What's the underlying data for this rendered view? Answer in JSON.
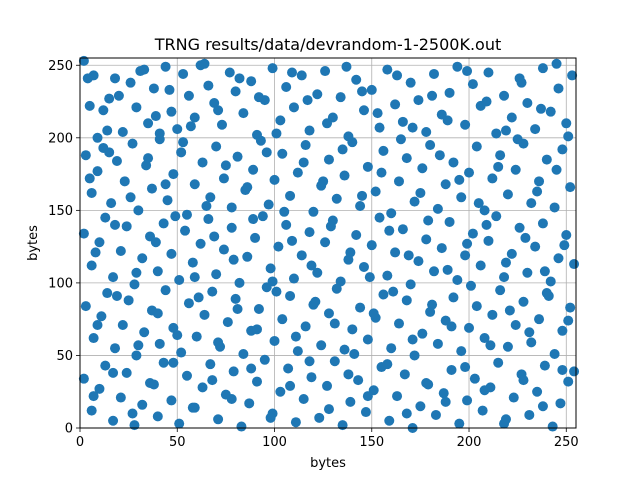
{
  "chart_data": {
    "type": "scatter",
    "title": "TRNG results/data/devrandom-1-2500K.out",
    "xlabel": "bytes",
    "ylabel": "bytes",
    "xlim": [
      0,
      255
    ],
    "ylim": [
      0,
      255
    ],
    "grid": true,
    "x_ticks": [
      0,
      50,
      100,
      150,
      200,
      250
    ],
    "y_ticks": [
      0,
      50,
      100,
      150,
      200,
      250
    ],
    "marker_color": "#1f77b4",
    "points": [
      [
        2,
        253
      ],
      [
        5,
        222
      ],
      [
        7,
        243
      ],
      [
        9,
        200
      ],
      [
        12,
        219
      ],
      [
        15,
        227
      ],
      [
        18,
        241
      ],
      [
        22,
        204
      ],
      [
        26,
        238
      ],
      [
        29,
        221
      ],
      [
        33,
        247
      ],
      [
        35,
        210
      ],
      [
        38,
        234
      ],
      [
        41,
        203
      ],
      [
        44,
        249
      ],
      [
        47,
        218
      ],
      [
        50,
        206
      ],
      [
        53,
        244
      ],
      [
        56,
        229
      ],
      [
        59,
        214
      ],
      [
        62,
        250
      ],
      [
        66,
        236
      ],
      [
        69,
        224
      ],
      [
        73,
        209
      ],
      [
        77,
        245
      ],
      [
        80,
        232
      ],
      [
        84,
        217
      ],
      [
        88,
        239
      ],
      [
        91,
        202
      ],
      [
        95,
        226
      ],
      [
        99,
        248
      ],
      [
        103,
        212
      ],
      [
        106,
        235
      ],
      [
        110,
        221
      ],
      [
        114,
        243
      ],
      [
        118,
        205
      ],
      [
        122,
        230
      ],
      [
        126,
        246
      ],
      [
        130,
        214
      ],
      [
        134,
        228
      ],
      [
        138,
        201
      ],
      [
        142,
        240
      ],
      [
        146,
        219
      ],
      [
        150,
        233
      ],
      [
        154,
        207
      ],
      [
        158,
        247
      ],
      [
        162,
        223
      ],
      [
        166,
        211
      ],
      [
        170,
        238
      ],
      [
        174,
        226
      ],
      [
        178,
        204
      ],
      [
        182,
        244
      ],
      [
        186,
        216
      ],
      [
        190,
        231
      ],
      [
        194,
        249
      ],
      [
        198,
        209
      ],
      [
        202,
        237
      ],
      [
        206,
        222
      ],
      [
        210,
        245
      ],
      [
        214,
        203
      ],
      [
        218,
        229
      ],
      [
        222,
        214
      ],
      [
        226,
        241
      ],
      [
        230,
        224
      ],
      [
        234,
        206
      ],
      [
        238,
        248
      ],
      [
        242,
        218
      ],
      [
        246,
        234
      ],
      [
        250,
        210
      ],
      [
        253,
        243
      ],
      [
        3,
        188
      ],
      [
        6,
        162
      ],
      [
        9,
        177
      ],
      [
        12,
        193
      ],
      [
        16,
        155
      ],
      [
        19,
        184
      ],
      [
        23,
        170
      ],
      [
        27,
        196
      ],
      [
        30,
        150
      ],
      [
        34,
        181
      ],
      [
        37,
        165
      ],
      [
        41,
        199
      ],
      [
        45,
        157
      ],
      [
        48,
        175
      ],
      [
        52,
        190
      ],
      [
        55,
        147
      ],
      [
        59,
        168
      ],
      [
        63,
        183
      ],
      [
        67,
        159
      ],
      [
        70,
        194
      ],
      [
        74,
        172
      ],
      [
        78,
        152
      ],
      [
        81,
        187
      ],
      [
        85,
        164
      ],
      [
        89,
        178
      ],
      [
        93,
        198
      ],
      [
        97,
        154
      ],
      [
        100,
        171
      ],
      [
        104,
        189
      ],
      [
        108,
        160
      ],
      [
        112,
        176
      ],
      [
        116,
        195
      ],
      [
        120,
        149
      ],
      [
        124,
        167
      ],
      [
        128,
        185
      ],
      [
        132,
        158
      ],
      [
        136,
        174
      ],
      [
        140,
        197
      ],
      [
        144,
        153
      ],
      [
        148,
        180
      ],
      [
        152,
        163
      ],
      [
        156,
        191
      ],
      [
        160,
        148
      ],
      [
        164,
        170
      ],
      [
        168,
        186
      ],
      [
        172,
        156
      ],
      [
        176,
        179
      ],
      [
        180,
        195
      ],
      [
        184,
        151
      ],
      [
        188,
        168
      ],
      [
        192,
        183
      ],
      [
        196,
        159
      ],
      [
        200,
        176
      ],
      [
        204,
        194
      ],
      [
        208,
        150
      ],
      [
        212,
        172
      ],
      [
        216,
        188
      ],
      [
        220,
        161
      ],
      [
        224,
        178
      ],
      [
        228,
        196
      ],
      [
        232,
        155
      ],
      [
        236,
        170
      ],
      [
        240,
        185
      ],
      [
        244,
        152
      ],
      [
        248,
        192
      ],
      [
        252,
        166
      ],
      [
        2,
        134
      ],
      [
        6,
        112
      ],
      [
        10,
        128
      ],
      [
        13,
        145
      ],
      [
        17,
        104
      ],
      [
        21,
        122
      ],
      [
        24,
        139
      ],
      [
        28,
        99
      ],
      [
        32,
        117
      ],
      [
        36,
        132
      ],
      [
        40,
        108
      ],
      [
        43,
        141
      ],
      [
        47,
        120
      ],
      [
        51,
        102
      ],
      [
        54,
        136
      ],
      [
        58,
        114
      ],
      [
        62,
        127
      ],
      [
        66,
        144
      ],
      [
        70,
        106
      ],
      [
        74,
        123
      ],
      [
        78,
        138
      ],
      [
        82,
        100
      ],
      [
        86,
        118
      ],
      [
        90,
        131
      ],
      [
        94,
        146
      ],
      [
        98,
        110
      ],
      [
        102,
        125
      ],
      [
        106,
        140
      ],
      [
        110,
        103
      ],
      [
        114,
        119
      ],
      [
        118,
        135
      ],
      [
        122,
        107
      ],
      [
        126,
        128
      ],
      [
        130,
        143
      ],
      [
        134,
        101
      ],
      [
        138,
        116
      ],
      [
        142,
        133
      ],
      [
        146,
        111
      ],
      [
        150,
        126
      ],
      [
        154,
        145
      ],
      [
        158,
        105
      ],
      [
        162,
        121
      ],
      [
        166,
        137
      ],
      [
        170,
        99
      ],
      [
        174,
        115
      ],
      [
        178,
        130
      ],
      [
        182,
        108
      ],
      [
        186,
        124
      ],
      [
        190,
        142
      ],
      [
        194,
        102
      ],
      [
        198,
        119
      ],
      [
        202,
        134
      ],
      [
        206,
        112
      ],
      [
        210,
        129
      ],
      [
        214,
        146
      ],
      [
        218,
        104
      ],
      [
        222,
        120
      ],
      [
        226,
        138
      ],
      [
        230,
        107
      ],
      [
        234,
        125
      ],
      [
        238,
        141
      ],
      [
        242,
        101
      ],
      [
        246,
        117
      ],
      [
        250,
        133
      ],
      [
        254,
        113
      ],
      [
        3,
        84
      ],
      [
        7,
        62
      ],
      [
        11,
        77
      ],
      [
        14,
        93
      ],
      [
        18,
        55
      ],
      [
        22,
        71
      ],
      [
        25,
        88
      ],
      [
        29,
        50
      ],
      [
        33,
        66
      ],
      [
        37,
        81
      ],
      [
        41,
        58
      ],
      [
        44,
        95
      ],
      [
        48,
        69
      ],
      [
        52,
        52
      ],
      [
        56,
        86
      ],
      [
        60,
        63
      ],
      [
        64,
        78
      ],
      [
        68,
        94
      ],
      [
        72,
        56
      ],
      [
        76,
        73
      ],
      [
        80,
        89
      ],
      [
        84,
        51
      ],
      [
        88,
        67
      ],
      [
        92,
        82
      ],
      [
        96,
        97
      ],
      [
        100,
        60
      ],
      [
        104,
        75
      ],
      [
        108,
        91
      ],
      [
        112,
        53
      ],
      [
        116,
        70
      ],
      [
        120,
        85
      ],
      [
        124,
        57
      ],
      [
        128,
        79
      ],
      [
        132,
        96
      ],
      [
        136,
        54
      ],
      [
        140,
        68
      ],
      [
        144,
        83
      ],
      [
        148,
        61
      ],
      [
        152,
        76
      ],
      [
        156,
        92
      ],
      [
        160,
        55
      ],
      [
        164,
        72
      ],
      [
        168,
        88
      ],
      [
        172,
        50
      ],
      [
        176,
        65
      ],
      [
        180,
        80
      ],
      [
        184,
        58
      ],
      [
        188,
        74
      ],
      [
        192,
        90
      ],
      [
        196,
        53
      ],
      [
        200,
        69
      ],
      [
        204,
        84
      ],
      [
        208,
        62
      ],
      [
        212,
        78
      ],
      [
        216,
        95
      ],
      [
        220,
        56
      ],
      [
        224,
        71
      ],
      [
        228,
        87
      ],
      [
        232,
        59
      ],
      [
        236,
        75
      ],
      [
        240,
        93
      ],
      [
        244,
        51
      ],
      [
        248,
        67
      ],
      [
        252,
        83
      ],
      [
        2,
        34
      ],
      [
        6,
        12
      ],
      [
        10,
        27
      ],
      [
        13,
        43
      ],
      [
        17,
        5
      ],
      [
        21,
        21
      ],
      [
        24,
        38
      ],
      [
        28,
        2
      ],
      [
        32,
        16
      ],
      [
        36,
        31
      ],
      [
        40,
        8
      ],
      [
        43,
        45
      ],
      [
        47,
        19
      ],
      [
        51,
        3
      ],
      [
        55,
        36
      ],
      [
        59,
        14
      ],
      [
        63,
        28
      ],
      [
        67,
        44
      ],
      [
        71,
        6
      ],
      [
        75,
        23
      ],
      [
        79,
        39
      ],
      [
        83,
        1
      ],
      [
        87,
        17
      ],
      [
        91,
        32
      ],
      [
        95,
        47
      ],
      [
        99,
        10
      ],
      [
        103,
        25
      ],
      [
        107,
        41
      ],
      [
        111,
        4
      ],
      [
        115,
        20
      ],
      [
        119,
        35
      ],
      [
        123,
        7
      ],
      [
        127,
        29
      ],
      [
        131,
        46
      ],
      [
        135,
        2
      ],
      [
        139,
        18
      ],
      [
        143,
        33
      ],
      [
        147,
        11
      ],
      [
        151,
        26
      ],
      [
        155,
        42
      ],
      [
        159,
        5
      ],
      [
        163,
        22
      ],
      [
        167,
        37
      ],
      [
        171,
        0
      ],
      [
        175,
        15
      ],
      [
        179,
        30
      ],
      [
        183,
        9
      ],
      [
        187,
        24
      ],
      [
        191,
        40
      ],
      [
        195,
        3
      ],
      [
        199,
        19
      ],
      [
        203,
        34
      ],
      [
        207,
        12
      ],
      [
        211,
        28
      ],
      [
        215,
        45
      ],
      [
        219,
        6
      ],
      [
        223,
        21
      ],
      [
        227,
        37
      ],
      [
        231,
        9
      ],
      [
        235,
        25
      ],
      [
        239,
        43
      ],
      [
        243,
        1
      ],
      [
        247,
        17
      ],
      [
        251,
        32
      ],
      [
        254,
        39
      ],
      [
        4,
        241
      ],
      [
        14,
        205
      ],
      [
        20,
        229
      ],
      [
        31,
        246
      ],
      [
        39,
        215
      ],
      [
        46,
        233
      ],
      [
        57,
        208
      ],
      [
        64,
        251
      ],
      [
        71,
        219
      ],
      [
        82,
        241
      ],
      [
        92,
        228
      ],
      [
        101,
        203
      ],
      [
        109,
        245
      ],
      [
        117,
        226
      ],
      [
        127,
        210
      ],
      [
        137,
        249
      ],
      [
        145,
        232
      ],
      [
        153,
        217
      ],
      [
        163,
        243
      ],
      [
        171,
        207
      ],
      [
        181,
        229
      ],
      [
        189,
        212
      ],
      [
        199,
        246
      ],
      [
        209,
        225
      ],
      [
        219,
        205
      ],
      [
        227,
        238
      ],
      [
        237,
        220
      ],
      [
        245,
        251
      ],
      [
        251,
        201
      ],
      [
        5,
        172
      ],
      [
        15,
        190
      ],
      [
        26,
        159
      ],
      [
        35,
        186
      ],
      [
        44,
        168
      ],
      [
        53,
        197
      ],
      [
        65,
        153
      ],
      [
        75,
        181
      ],
      [
        86,
        166
      ],
      [
        96,
        190
      ],
      [
        105,
        149
      ],
      [
        115,
        183
      ],
      [
        125,
        170
      ],
      [
        135,
        192
      ],
      [
        145,
        160
      ],
      [
        155,
        176
      ],
      [
        165,
        199
      ],
      [
        175,
        162
      ],
      [
        185,
        188
      ],
      [
        195,
        171
      ],
      [
        205,
        155
      ],
      [
        215,
        180
      ],
      [
        225,
        199
      ],
      [
        235,
        163
      ],
      [
        245,
        178
      ],
      [
        8,
        121
      ],
      [
        18,
        140
      ],
      [
        29,
        107
      ],
      [
        39,
        128
      ],
      [
        49,
        146
      ],
      [
        59,
        104
      ],
      [
        69,
        132
      ],
      [
        79,
        116
      ],
      [
        89,
        144
      ],
      [
        99,
        101
      ],
      [
        109,
        129
      ],
      [
        119,
        112
      ],
      [
        129,
        139
      ],
      [
        139,
        121
      ],
      [
        149,
        104
      ],
      [
        159,
        136
      ],
      [
        169,
        119
      ],
      [
        179,
        143
      ],
      [
        189,
        109
      ],
      [
        199,
        127
      ],
      [
        209,
        140
      ],
      [
        219,
        114
      ],
      [
        229,
        131
      ],
      [
        239,
        108
      ],
      [
        249,
        126
      ],
      [
        9,
        71
      ],
      [
        19,
        91
      ],
      [
        30,
        57
      ],
      [
        40,
        79
      ],
      [
        50,
        64
      ],
      [
        61,
        90
      ],
      [
        71,
        59
      ],
      [
        81,
        82
      ],
      [
        91,
        68
      ],
      [
        101,
        94
      ],
      [
        111,
        63
      ],
      [
        121,
        87
      ],
      [
        131,
        72
      ],
      [
        141,
        51
      ],
      [
        151,
        79
      ],
      [
        161,
        94
      ],
      [
        171,
        61
      ],
      [
        181,
        85
      ],
      [
        191,
        70
      ],
      [
        201,
        98
      ],
      [
        211,
        57
      ],
      [
        221,
        81
      ],
      [
        231,
        66
      ],
      [
        241,
        91
      ],
      [
        251,
        74
      ],
      [
        7,
        22
      ],
      [
        17,
        38
      ],
      [
        27,
        10
      ],
      [
        38,
        30
      ],
      [
        48,
        45
      ],
      [
        58,
        14
      ],
      [
        68,
        33
      ],
      [
        78,
        20
      ],
      [
        88,
        41
      ],
      [
        98,
        7
      ],
      [
        108,
        29
      ],
      [
        118,
        46
      ],
      [
        128,
        13
      ],
      [
        138,
        37
      ],
      [
        148,
        22
      ],
      [
        158,
        44
      ],
      [
        168,
        10
      ],
      [
        178,
        31
      ],
      [
        188,
        18
      ],
      [
        198,
        42
      ],
      [
        208,
        26
      ],
      [
        218,
        3
      ],
      [
        228,
        33
      ],
      [
        238,
        15
      ],
      [
        248,
        40
      ]
    ]
  }
}
